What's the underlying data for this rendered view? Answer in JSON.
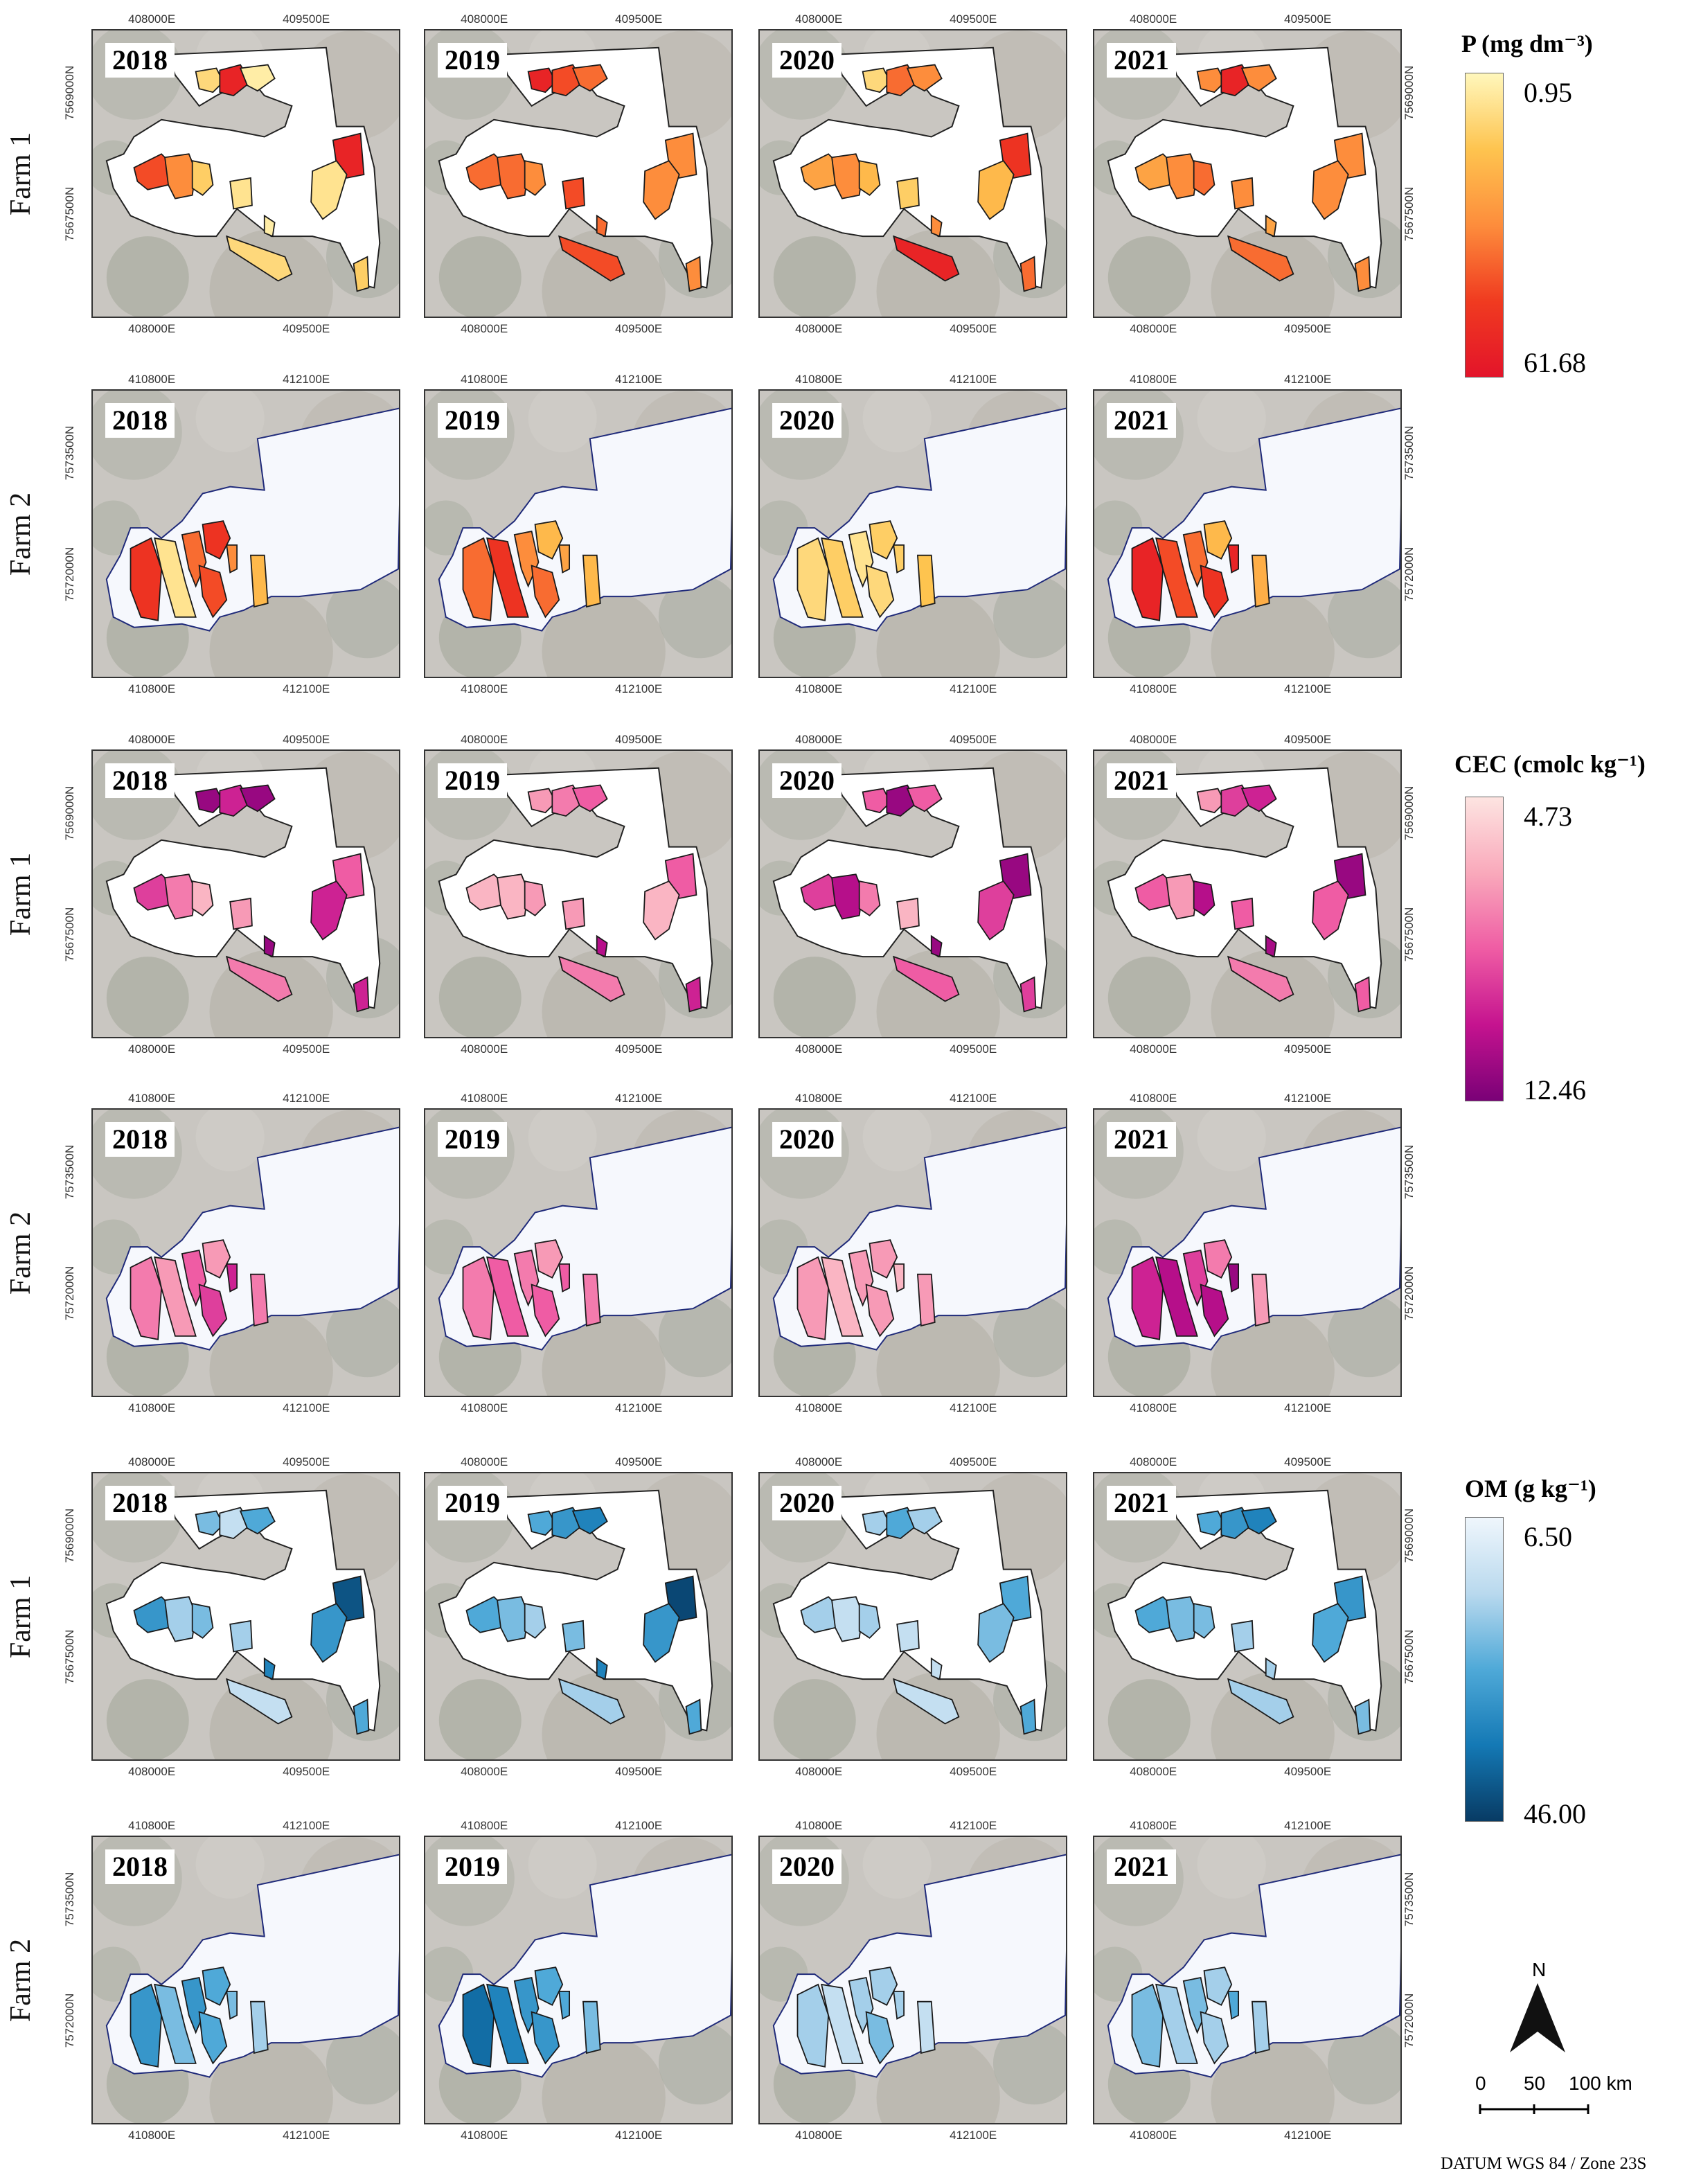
{
  "figure": {
    "rows": [
      {
        "farm_label": "Farm 1",
        "farm": 1,
        "variable": "P"
      },
      {
        "farm_label": "Farm 2",
        "farm": 2,
        "variable": "P"
      },
      {
        "farm_label": "Farm 1",
        "farm": 1,
        "variable": "CEC"
      },
      {
        "farm_label": "Farm 2",
        "farm": 2,
        "variable": "CEC"
      },
      {
        "farm_label": "Farm 1",
        "farm": 1,
        "variable": "OM"
      },
      {
        "farm_label": "Farm 2",
        "farm": 2,
        "variable": "OM"
      }
    ],
    "years": [
      "2018",
      "2019",
      "2020",
      "2021"
    ],
    "axis_ticks": {
      "farm1": {
        "x": [
          "408000E",
          "409500E"
        ],
        "y": [
          "7569000N",
          "7567500N"
        ]
      },
      "farm2": {
        "x": [
          "410800E",
          "412100E"
        ],
        "y": [
          "7573500N",
          "7572000N"
        ]
      }
    }
  },
  "legends": [
    {
      "title": "P (mg dm⁻³)",
      "min": "0.95",
      "max": "61.68",
      "colors": [
        "#fff7bc",
        "#fec44f",
        "#fd8d3c",
        "#f03b20",
        "#e3142a"
      ]
    },
    {
      "title": "CEC (cmolc kg⁻¹)",
      "min": "4.73",
      "max": "12.46",
      "colors": [
        "#fde4e1",
        "#f9a9bb",
        "#ef5ca4",
        "#c5138f",
        "#7a0177"
      ]
    },
    {
      "title": "OM (g kg⁻¹)",
      "min": "6.50",
      "max": "46.00",
      "colors": [
        "#eff6fc",
        "#b9d9ee",
        "#4fa9d8",
        "#1479b5",
        "#083b64"
      ]
    }
  ],
  "map_values": {
    "P": {
      "farm1": [
        [
          0.15,
          0.9,
          0.05,
          0.7,
          0.5,
          0.2,
          0.1,
          0.9,
          0.1,
          0.05,
          0.15,
          0.2
        ],
        [
          0.9,
          0.7,
          0.6,
          0.6,
          0.6,
          0.5,
          0.7,
          0.5,
          0.5,
          0.6,
          0.7,
          0.5
        ],
        [
          0.15,
          0.6,
          0.5,
          0.4,
          0.5,
          0.3,
          0.2,
          0.8,
          0.3,
          0.5,
          0.9,
          0.6
        ],
        [
          0.5,
          0.9,
          0.5,
          0.4,
          0.5,
          0.6,
          0.5,
          0.5,
          0.5,
          0.4,
          0.6,
          0.5
        ]
      ],
      "farm2": [
        [
          0.8,
          0.1,
          0.6,
          0.8,
          0.7,
          0.5,
          0.3
        ],
        [
          0.6,
          0.8,
          0.5,
          0.3,
          0.6,
          0.4,
          0.3
        ],
        [
          0.15,
          0.2,
          0.1,
          0.2,
          0.15,
          0.2,
          0.25
        ],
        [
          0.9,
          0.7,
          0.6,
          0.3,
          0.8,
          0.9,
          0.35
        ]
      ]
    },
    "CEC": {
      "farm1": [
        [
          0.9,
          0.7,
          0.9,
          0.6,
          0.4,
          0.2,
          0.3,
          0.5,
          0.7,
          0.9,
          0.4,
          0.7
        ],
        [
          0.3,
          0.4,
          0.5,
          0.2,
          0.2,
          0.3,
          0.3,
          0.5,
          0.2,
          0.8,
          0.4,
          0.7
        ],
        [
          0.5,
          0.9,
          0.5,
          0.6,
          0.8,
          0.4,
          0.2,
          0.9,
          0.6,
          0.9,
          0.5,
          0.6
        ],
        [
          0.3,
          0.6,
          0.7,
          0.5,
          0.3,
          0.8,
          0.5,
          0.9,
          0.5,
          0.85,
          0.4,
          0.5
        ]
      ],
      "farm2": [
        [
          0.4,
          0.3,
          0.5,
          0.3,
          0.6,
          0.7,
          0.4
        ],
        [
          0.4,
          0.5,
          0.4,
          0.3,
          0.5,
          0.5,
          0.4
        ],
        [
          0.3,
          0.2,
          0.3,
          0.3,
          0.3,
          0.2,
          0.3
        ],
        [
          0.7,
          0.8,
          0.6,
          0.4,
          0.8,
          0.9,
          0.3
        ]
      ]
    },
    "OM": {
      "farm1": [
        [
          0.4,
          0.2,
          0.5,
          0.6,
          0.3,
          0.4,
          0.3,
          0.9,
          0.6,
          0.7,
          0.2,
          0.5
        ],
        [
          0.5,
          0.6,
          0.7,
          0.5,
          0.4,
          0.3,
          0.4,
          0.95,
          0.6,
          0.7,
          0.3,
          0.5
        ],
        [
          0.3,
          0.5,
          0.3,
          0.3,
          0.2,
          0.3,
          0.2,
          0.5,
          0.4,
          0.2,
          0.2,
          0.5
        ],
        [
          0.5,
          0.6,
          0.7,
          0.5,
          0.4,
          0.4,
          0.3,
          0.6,
          0.5,
          0.3,
          0.3,
          0.4
        ]
      ],
      "farm2": [
        [
          0.6,
          0.4,
          0.6,
          0.5,
          0.5,
          0.4,
          0.3
        ],
        [
          0.8,
          0.7,
          0.6,
          0.5,
          0.6,
          0.5,
          0.4
        ],
        [
          0.3,
          0.2,
          0.3,
          0.3,
          0.4,
          0.3,
          0.2
        ],
        [
          0.4,
          0.3,
          0.4,
          0.3,
          0.3,
          0.5,
          0.3
        ]
      ]
    }
  },
  "north_arrow": {
    "label": "N"
  },
  "scale_bar": {
    "labels": [
      "0",
      "50",
      "100 km"
    ]
  },
  "datum": "DATUM WGS 84 / Zone 23S"
}
